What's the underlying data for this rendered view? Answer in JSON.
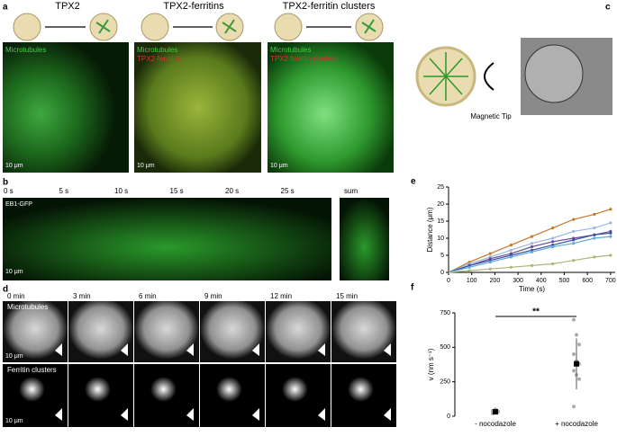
{
  "panels": {
    "a": {
      "label": "a",
      "titles": [
        "TPX2",
        "TPX2-ferritins",
        "TPX2-ferritin clusters"
      ],
      "channels": [
        "Microtubules",
        "TPX2-ferritins",
        "TPX2-ferritin clusters"
      ],
      "scale": "10 μm"
    },
    "b": {
      "label": "b",
      "times": [
        "0 s",
        "5 s",
        "10 s",
        "15 s",
        "20 s",
        "25 s"
      ],
      "sum": "sum",
      "channel": "EB1-GFP",
      "scale": "10 μm"
    },
    "c": {
      "label": "c",
      "tip": "Magnetic Tip"
    },
    "d": {
      "label": "d",
      "times": [
        "0 min",
        "3 min",
        "6 min",
        "9 min",
        "12 min",
        "15 min"
      ],
      "rows": [
        "Microtubules",
        "Ferritin clusters"
      ],
      "scale": "10 μm"
    },
    "e": {
      "label": "e"
    },
    "f": {
      "label": "f"
    }
  },
  "chart_data": [
    {
      "type": "line",
      "x_label": "Time (s)",
      "y_label": "Distance (μm)",
      "x": [
        0,
        90,
        180,
        270,
        360,
        450,
        540,
        630,
        700
      ],
      "series": [
        {
          "color": "#c8782a",
          "values": [
            0,
            3,
            5.5,
            8,
            10.5,
            13,
            15.5,
            17,
            18.5
          ]
        },
        {
          "color": "#9cb8de",
          "values": [
            0,
            2.5,
            4.5,
            6.5,
            8.5,
            10,
            12,
            13,
            14.5
          ]
        },
        {
          "color": "#6a4a9a",
          "values": [
            0,
            2,
            4,
            5.5,
            7.5,
            9,
            10,
            11,
            12
          ]
        },
        {
          "color": "#34509e",
          "values": [
            0,
            2,
            3.5,
            5,
            6.5,
            8,
            9.5,
            11,
            11.5
          ]
        },
        {
          "color": "#5ea8dc",
          "values": [
            0,
            1.5,
            3,
            4.5,
            6,
            7.5,
            8.5,
            10,
            10.5
          ]
        },
        {
          "color": "#a8b878",
          "values": [
            0,
            0.5,
            1,
            1.5,
            2,
            2.5,
            3.5,
            4.5,
            5
          ]
        }
      ],
      "xlim": [
        0,
        720
      ],
      "xticks": [
        0,
        100,
        200,
        300,
        400,
        500,
        600,
        700
      ],
      "ylim": [
        0,
        25
      ],
      "yticks": [
        0,
        5,
        10,
        15,
        20,
        25
      ]
    },
    {
      "type": "strip",
      "y_label": "v (nm s⁻¹)",
      "categories": [
        "- nocodazole",
        "+ nocodazole"
      ],
      "points": [
        [
          20,
          28,
          35,
          40,
          45,
          30,
          25,
          50
        ],
        [
          700,
          590,
          520,
          450,
          400,
          380,
          330,
          300,
          270,
          70
        ]
      ],
      "means": [
        32,
        380
      ],
      "errors": [
        10,
        185
      ],
      "annotation": "**",
      "ylim": [
        0,
        750
      ],
      "yticks": [
        0,
        250,
        500,
        750
      ]
    }
  ]
}
